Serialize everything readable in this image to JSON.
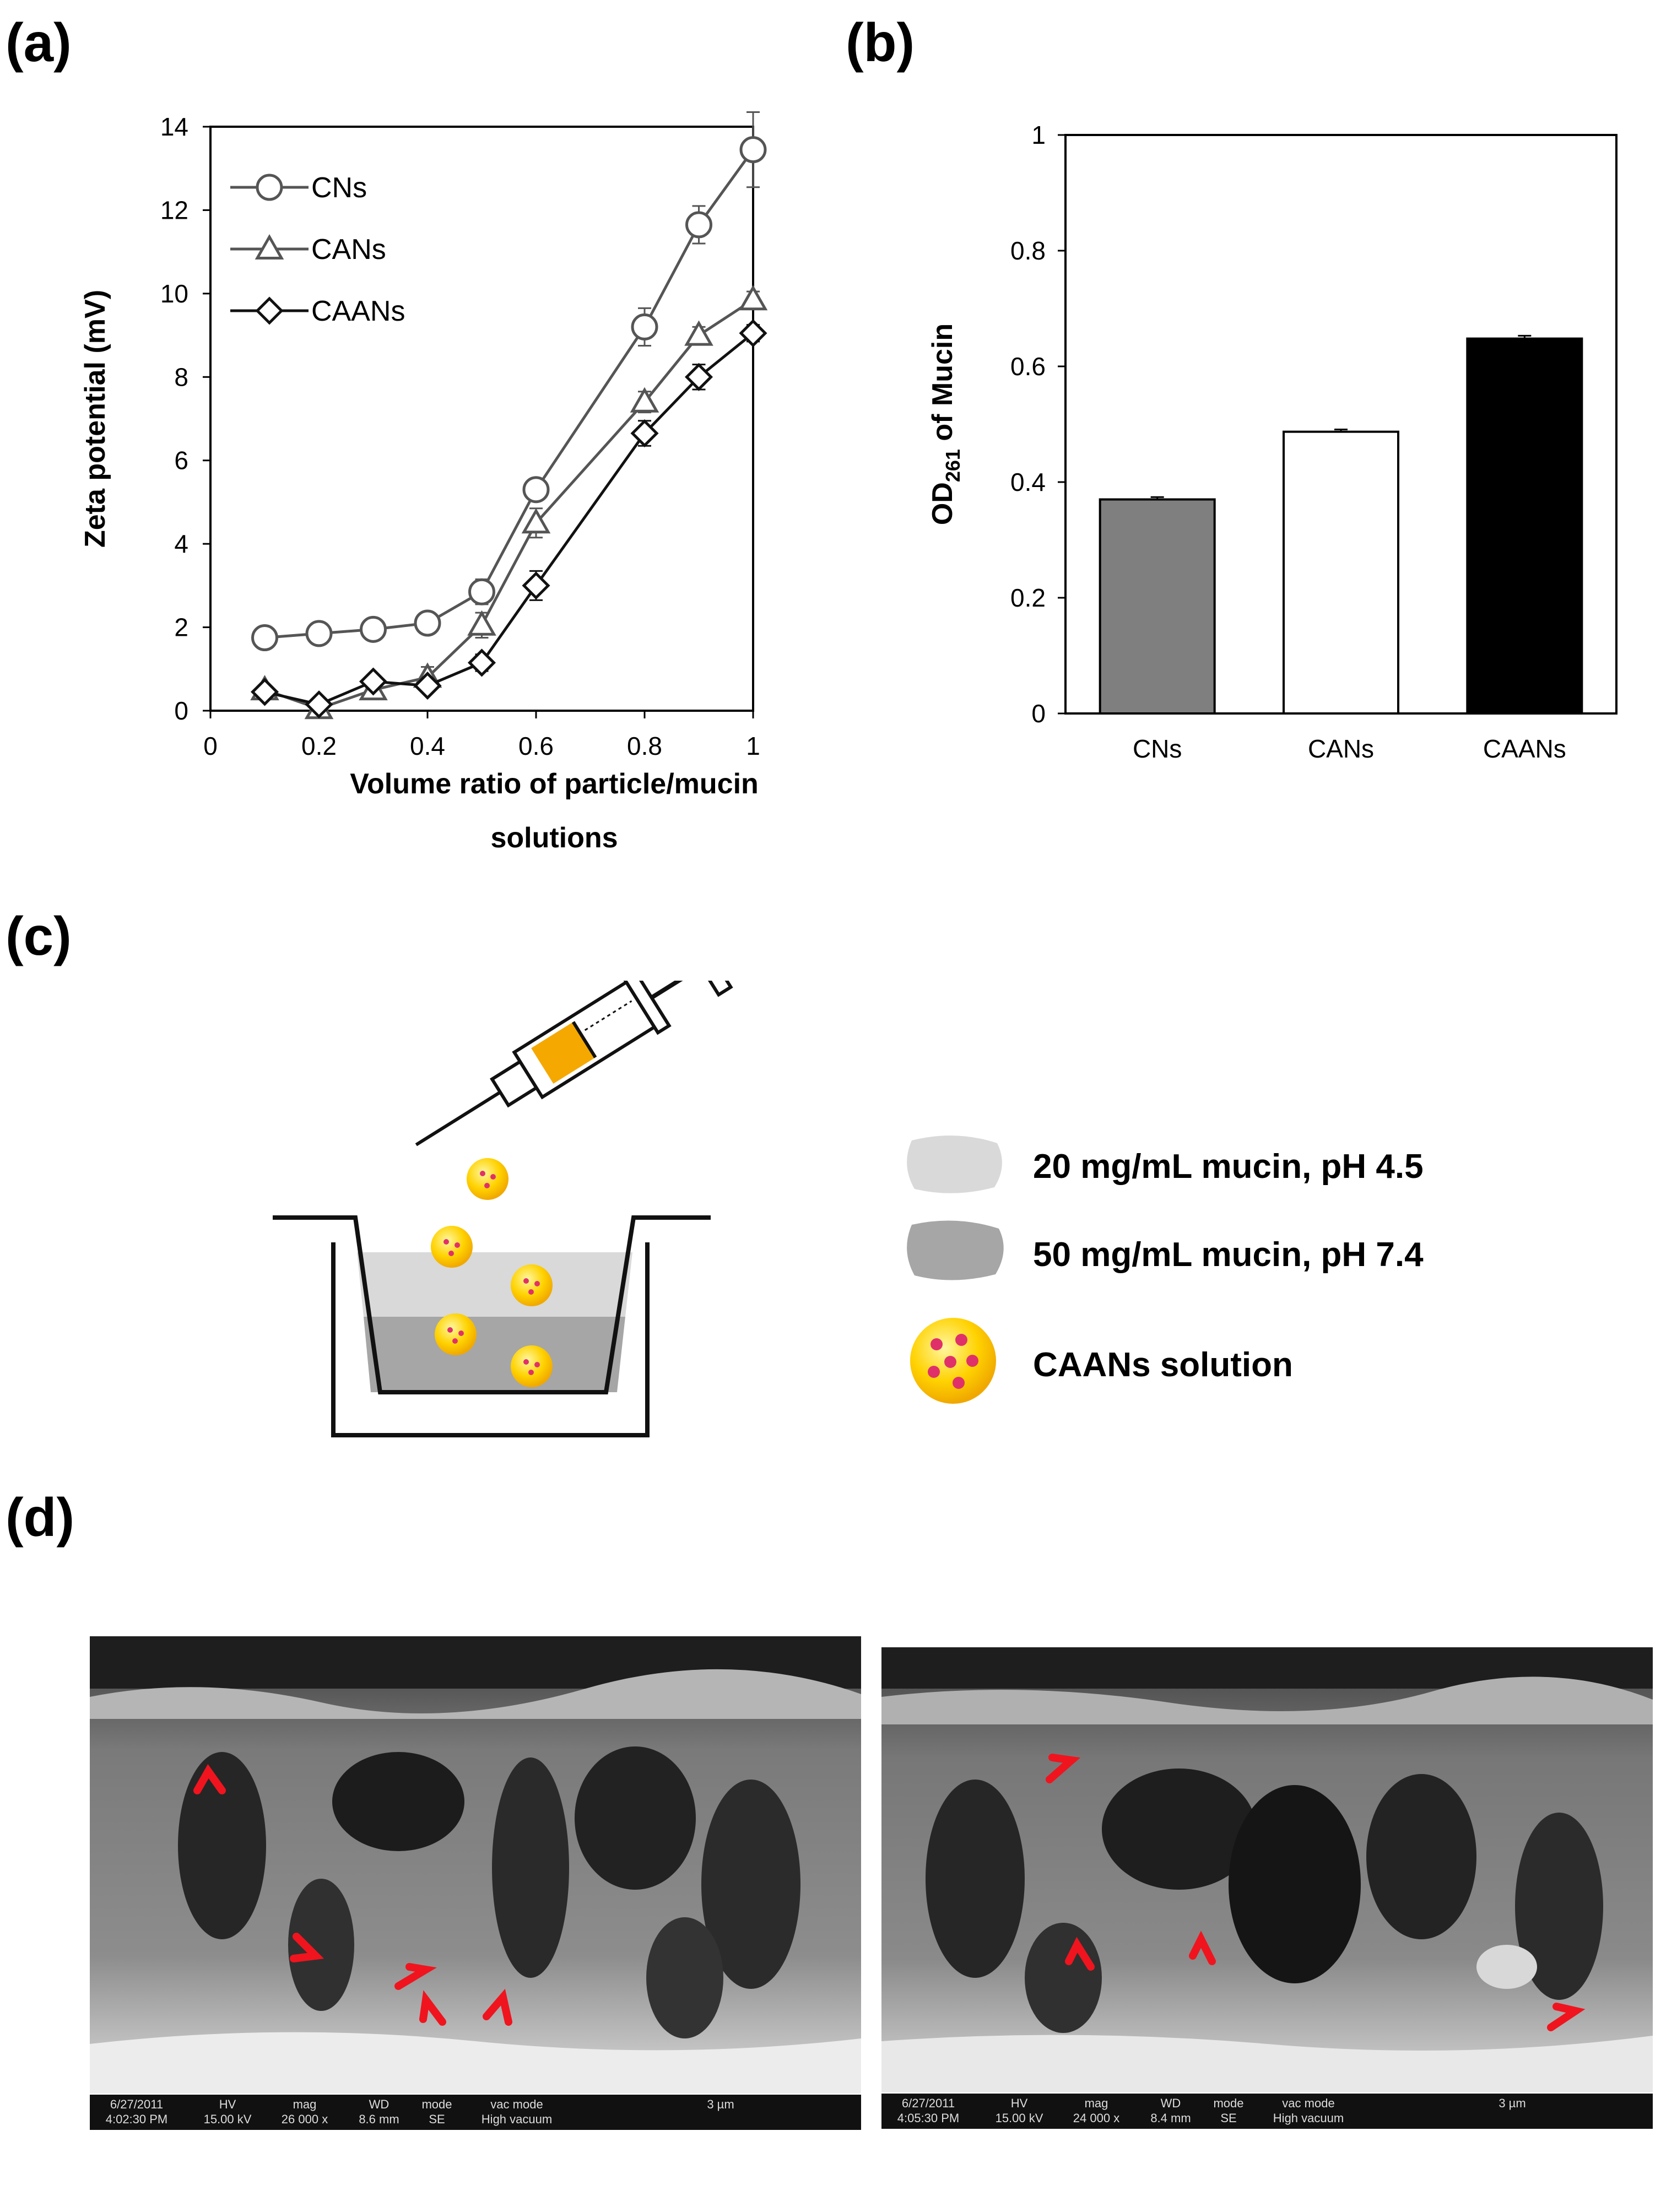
{
  "panels": {
    "a_label": "(a)",
    "b_label": "(b)",
    "c_label": "(c)",
    "d_label": "(d)"
  },
  "chart_data": [
    {
      "type": "line",
      "panel": "(a)",
      "xlabel_line1": "Volume ratio of particle/mucin",
      "xlabel_line2": "solutions",
      "ylabel": "Zeta potential (mV)",
      "xlim": [
        0,
        1
      ],
      "ylim": [
        0,
        14
      ],
      "x_ticks": [
        0,
        0.2,
        0.4,
        0.6,
        0.8,
        1
      ],
      "x_tick_labels": [
        "0",
        "0.2",
        "0.4",
        "0.6",
        "0.8",
        "1"
      ],
      "y_ticks": [
        0,
        2,
        4,
        6,
        8,
        10,
        12,
        14
      ],
      "y_tick_labels": [
        "0",
        "2",
        "4",
        "6",
        "8",
        "10",
        "12",
        "14"
      ],
      "legend_position": "top-left",
      "x": [
        0.1,
        0.2,
        0.3,
        0.4,
        0.5,
        0.6,
        0.8,
        0.9,
        1.0
      ],
      "series": [
        {
          "name": "CNs",
          "marker": "circle",
          "color": "#555555",
          "values": [
            1.75,
            1.85,
            1.95,
            2.1,
            2.85,
            5.3,
            9.2,
            11.65,
            13.45
          ],
          "errors": [
            0.2,
            0.2,
            0.2,
            0.25,
            0.3,
            0.25,
            0.45,
            0.45,
            0.9
          ]
        },
        {
          "name": "CANs",
          "marker": "triangle",
          "color": "#555555",
          "values": [
            0.5,
            0.05,
            0.5,
            0.8,
            2.05,
            4.5,
            7.4,
            9.0,
            9.85
          ],
          "errors": [
            0.1,
            0.15,
            0.2,
            0.25,
            0.3,
            0.35,
            0.25,
            0.2,
            0.2
          ]
        },
        {
          "name": "CAANs",
          "marker": "diamond",
          "color": "#111111",
          "values": [
            0.45,
            0.15,
            0.7,
            0.6,
            1.15,
            3.0,
            6.65,
            8.0,
            9.05
          ],
          "errors": [
            0.15,
            0.1,
            0.15,
            0.15,
            0.2,
            0.35,
            0.3,
            0.3,
            0.2
          ]
        }
      ]
    },
    {
      "type": "bar",
      "panel": "(b)",
      "categories": [
        "CNs",
        "CANs",
        "CAANs"
      ],
      "values": [
        0.37,
        0.487,
        0.648
      ],
      "errors": [
        0.004,
        0.004,
        0.005
      ],
      "colors": [
        "#7f7f7f",
        "#ffffff",
        "#000000"
      ],
      "ylabel_main": "OD",
      "ylabel_sub": "261",
      "ylabel_rest": " of Mucin",
      "ylim": [
        0,
        1
      ],
      "y_ticks": [
        0,
        0.2,
        0.4,
        0.6,
        0.8,
        1
      ],
      "y_tick_labels": [
        "0",
        "0.2",
        "0.4",
        "0.6",
        "0.8",
        "1"
      ]
    }
  ],
  "schematic": {
    "legend": [
      {
        "name": "mucin-20",
        "label": "20 mg/mL mucin, pH 4.5",
        "color": "#d9d9d9"
      },
      {
        "name": "mucin-50",
        "label": "50 mg/mL mucin, pH 7.4",
        "color": "#a6a6a6"
      },
      {
        "name": "caans",
        "label": "CAANs solution",
        "color": "#ffd200"
      }
    ]
  },
  "sem_images": [
    {
      "date": "6/27/2011",
      "time": "4:02:30 PM",
      "hv_h": "HV",
      "hv": "15.00 kV",
      "mag_h": "mag",
      "mag": "26 000 x",
      "wd_h": "WD",
      "wd": "8.6 mm",
      "mode_h": "mode",
      "mode": "SE",
      "vac_h": "vac mode",
      "vac": "High vacuum",
      "scale": "3 µm"
    },
    {
      "date": "6/27/2011",
      "time": "4:05:30 PM",
      "hv_h": "HV",
      "hv": "15.00 kV",
      "mag_h": "mag",
      "mag": "24 000 x",
      "wd_h": "WD",
      "wd": "8.4 mm",
      "mode_h": "mode",
      "mode": "SE",
      "vac_h": "vac mode",
      "vac": "High vacuum",
      "scale": "3 µm"
    }
  ]
}
